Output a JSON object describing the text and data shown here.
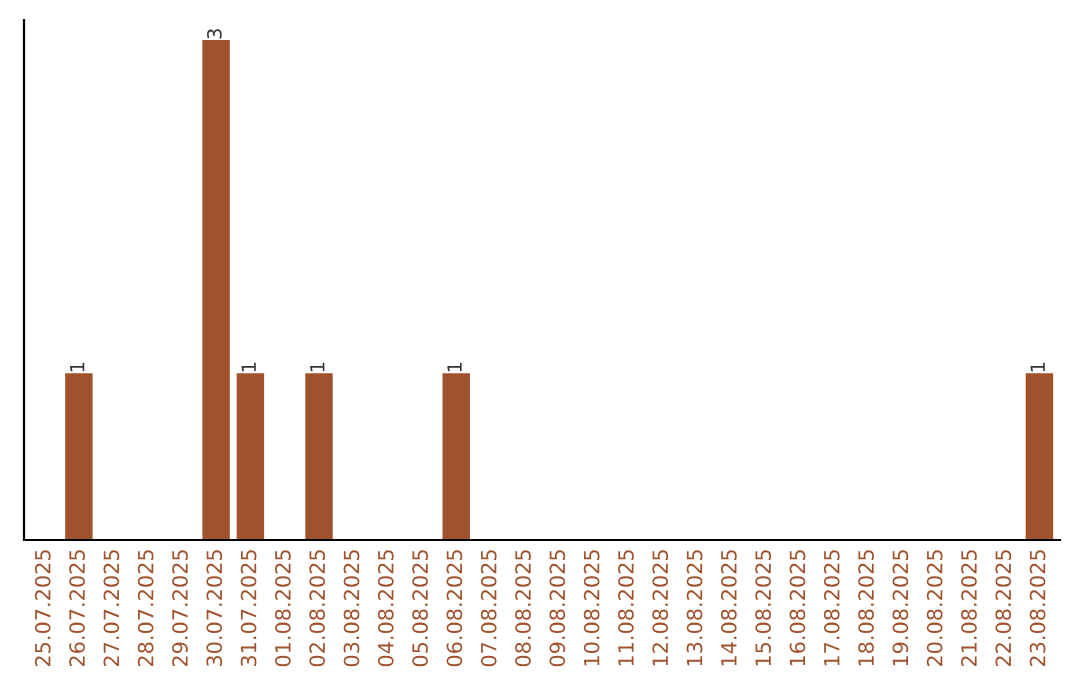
{
  "chart_data": {
    "type": "bar",
    "categories": [
      "25.07.2025",
      "26.07.2025",
      "27.07.2025",
      "28.07.2025",
      "29.07.2025",
      "30.07.2025",
      "31.07.2025",
      "01.08.2025",
      "02.08.2025",
      "03.08.2025",
      "04.08.2025",
      "05.08.2025",
      "06.08.2025",
      "07.08.2025",
      "08.08.2025",
      "09.08.2025",
      "10.08.2025",
      "11.08.2025",
      "12.08.2025",
      "13.08.2025",
      "14.08.2025",
      "15.08.2025",
      "16.08.2025",
      "17.08.2025",
      "18.08.2025",
      "19.08.2025",
      "20.08.2025",
      "21.08.2025",
      "22.08.2025",
      "23.08.2025"
    ],
    "values": [
      0,
      1,
      0,
      0,
      0,
      3,
      1,
      0,
      1,
      0,
      0,
      0,
      1,
      0,
      0,
      0,
      0,
      0,
      0,
      0,
      0,
      0,
      0,
      0,
      0,
      0,
      0,
      0,
      0,
      1
    ],
    "color": "#a0522d",
    "ylim": [
      0,
      3.12
    ],
    "value_labels": [
      null,
      "1",
      null,
      null,
      null,
      "3",
      "1",
      null,
      "1",
      null,
      null,
      null,
      "1",
      null,
      null,
      null,
      null,
      null,
      null,
      null,
      null,
      null,
      null,
      null,
      null,
      null,
      null,
      null,
      null,
      "1"
    ],
    "tick_labels": "x",
    "grid": false,
    "legend": false
  }
}
